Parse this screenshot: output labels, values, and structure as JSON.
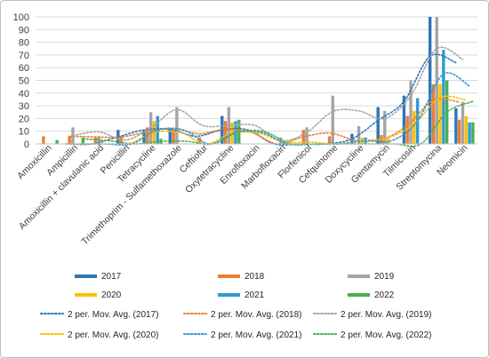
{
  "chart_data": {
    "type": "bar",
    "title": "",
    "xlabel": "",
    "ylabel": "",
    "ylim": [
      0,
      100
    ],
    "yticks": [
      0,
      10,
      20,
      30,
      40,
      50,
      60,
      70,
      80,
      90,
      100
    ],
    "grid": "horizontal",
    "legend_position": "bottom",
    "categories": [
      "Amoxicillin",
      "Ampicillin",
      "Amoxicillin + clavulanic acid",
      "Penicillin",
      "Tetracycline",
      "Trimethoprim - Sulfamethoxazole",
      "Ceftiofur",
      "Oxytetracycline",
      "Enrofloxacin",
      "Marbofloxacin",
      "Florfenicol",
      "Cefquinome",
      "Doxycycline",
      "Gentamycin",
      "Tilmicosin",
      "Streptomycina",
      "Neomicin"
    ],
    "series": [
      {
        "name": "2017",
        "color": "#2e75b6",
        "values": [
          0,
          0,
          0,
          11,
          11,
          12,
          0,
          22,
          0,
          0,
          0,
          0,
          8,
          29,
          38,
          100,
          28
        ]
      },
      {
        "name": "2018",
        "color": "#ed7d31",
        "values": [
          6,
          6,
          5,
          6,
          13,
          11,
          5,
          18,
          0,
          0,
          11,
          6,
          0,
          7,
          22,
          47,
          19
        ]
      },
      {
        "name": "2019",
        "color": "#a5a5a5",
        "values": [
          0,
          13,
          6,
          0,
          25,
          29,
          0,
          29,
          0,
          5,
          13,
          38,
          14,
          26,
          50,
          100,
          33
        ]
      },
      {
        "name": "2020",
        "color": "#ffc000",
        "values": [
          0,
          0,
          0,
          0,
          18,
          0,
          0,
          17,
          0,
          3,
          0,
          0,
          5,
          5,
          26,
          47,
          22
        ]
      },
      {
        "name": "2021",
        "color": "#2f9bd6",
        "values": [
          0,
          0,
          0,
          0,
          22,
          0,
          0,
          18,
          0,
          0,
          0,
          0,
          5,
          0,
          36,
          74,
          17
        ]
      },
      {
        "name": "2022",
        "color": "#4caf50",
        "values": [
          3,
          5,
          0,
          0,
          4,
          0,
          0,
          19,
          0,
          0,
          0,
          0,
          0,
          0,
          0,
          50,
          17
        ]
      }
    ],
    "trendlines": [
      {
        "name": "2 per. Mov. Avg. (2017)",
        "color": "#2e75b6"
      },
      {
        "name": "2 per. Mov. Avg. (2018)",
        "color": "#ed7d31"
      },
      {
        "name": "2 per. Mov. Avg. (2019)",
        "color": "#a5a5a5"
      },
      {
        "name": "2 per. Mov. Avg. (2020)",
        "color": "#ffc000"
      },
      {
        "name": "2 per. Mov. Avg. (2021)",
        "color": "#2f9bd6"
      },
      {
        "name": "2 per. Mov. Avg. (2022)",
        "color": "#4caf50"
      }
    ]
  }
}
